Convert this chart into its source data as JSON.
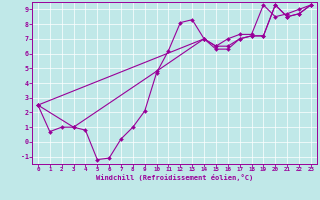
{
  "xlabel": "Windchill (Refroidissement éolien,°C)",
  "xlim": [
    -0.5,
    23.5
  ],
  "ylim": [
    -1.5,
    9.5
  ],
  "xticks": [
    0,
    1,
    2,
    3,
    4,
    5,
    6,
    7,
    8,
    9,
    10,
    11,
    12,
    13,
    14,
    15,
    16,
    17,
    18,
    19,
    20,
    21,
    22,
    23
  ],
  "yticks": [
    -1,
    0,
    1,
    2,
    3,
    4,
    5,
    6,
    7,
    8,
    9
  ],
  "bg_color": "#c0e8e8",
  "line_color": "#990099",
  "grid_color": "#ffffff",
  "line1_x": [
    0,
    1,
    2,
    3,
    4,
    5,
    6,
    7,
    8,
    9,
    10,
    11,
    12,
    13,
    14,
    15,
    16,
    17,
    18,
    19,
    20,
    21,
    22,
    23
  ],
  "line1_y": [
    2.5,
    0.7,
    1.0,
    1.0,
    0.8,
    -1.2,
    -1.1,
    0.2,
    1.0,
    2.1,
    4.7,
    6.2,
    8.1,
    8.3,
    7.0,
    6.5,
    7.0,
    7.3,
    7.3,
    9.3,
    8.5,
    8.7,
    9.0,
    9.3
  ],
  "line2_x": [
    0,
    3,
    10,
    14,
    15,
    16,
    17,
    18,
    19,
    20,
    21,
    22,
    23
  ],
  "line2_y": [
    2.5,
    1.0,
    4.8,
    7.0,
    6.5,
    6.5,
    7.0,
    7.2,
    7.2,
    9.3,
    8.5,
    8.7,
    9.3
  ],
  "line3_x": [
    0,
    14,
    15,
    16,
    17,
    18,
    19,
    20,
    21,
    22,
    23
  ],
  "line3_y": [
    2.5,
    7.0,
    6.3,
    6.3,
    7.0,
    7.2,
    7.2,
    9.3,
    8.5,
    8.7,
    9.3
  ]
}
